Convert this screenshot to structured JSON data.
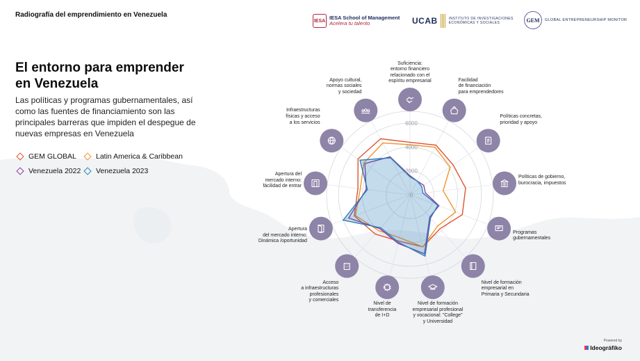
{
  "header": {
    "title": "Radiografía del emprendimiento en Venezuela",
    "logos": {
      "iesa_mark": "IESA",
      "iesa_name": "IESA School of Management",
      "iesa_tagline": "Acelera tu talento",
      "ucab_name": "UCAB",
      "ucab_institute_line1": "INSTITUTO DE INVESTIGACIONES",
      "ucab_institute_line2": "ECONÓMICAS Y SOCIALES",
      "gem_mark": "GEM",
      "gem_name": "GLOBAL ENTREPRENEURSHIP MONITOR"
    }
  },
  "intro": {
    "headline_line1": "El entorno para emprender",
    "headline_line2": "en Venezuela",
    "lead": "Las políticas y programas gubernamentales, así como las fuentes de financiamiento son las principales barreras que impiden el despegue de nuevas empresas en Venezuela"
  },
  "legend": [
    {
      "label": "GEM GLOBAL",
      "color": "#e0522c"
    },
    {
      "label": "Latin America & Caribbean",
      "color": "#f0932e"
    },
    {
      "label": "Venezuela 2022",
      "color": "#8e3d9e"
    },
    {
      "label": "Venezuela 2023",
      "color": "#2a7fb8"
    }
  ],
  "footer": {
    "powered_by": "Powered by",
    "brand": "Ideográfiko"
  },
  "chart_data": {
    "type": "radar",
    "title": "",
    "rlim": [
      0,
      7000
    ],
    "tick_labels": [
      "0",
      "2000",
      "4000",
      "6000"
    ],
    "tick_values": [
      0,
      2000,
      4000,
      6000
    ],
    "categories": [
      [
        "Suficiencia:",
        "entorno financiero",
        "relacionado con el",
        "espíritu empresarial"
      ],
      [
        "Facilidad",
        "de financiación",
        "para emprendedores"
      ],
      [
        "Políticas concretas,",
        "prioridad y apoyo"
      ],
      [
        "Políticas de gobierno,",
        "burocracia, impuestos"
      ],
      [
        "Programas",
        "gubernamentales"
      ],
      [
        "Nivel de formación",
        "empresarial en",
        "Primaria y Secundaria"
      ],
      [
        "Nivel de formación",
        "empresarial profesional",
        "y vocacional: \"College\"",
        "y Universidad"
      ],
      [
        "Nivel de",
        "transferencia",
        "de I+D"
      ],
      [
        "Acceso",
        "a infraestructuras",
        "profesionales",
        "y comerciales"
      ],
      [
        "Apertura",
        "del mercado interno:",
        "Dinámica /oportunidad"
      ],
      [
        "Apertura del",
        "mercado interno:",
        "fácilidad de entrar"
      ],
      [
        "Infraestructuras",
        "físicas y acceso",
        "a los servicios"
      ],
      [
        "Apoyo cultural,",
        "normas sociales",
        "y sociedad"
      ]
    ],
    "icons": [
      "handshake-icon",
      "money-bag-icon",
      "policy-document-icon",
      "bank-icon",
      "certificate-icon",
      "book-icon",
      "graduation-cap-icon",
      "gear-icon",
      "building-icon",
      "open-door-icon",
      "doorway-icon",
      "globe-icon",
      "community-icon"
    ],
    "series": [
      {
        "name": "GEM GLOBAL",
        "color": "#e0522c",
        "values": [
          4400,
          4700,
          4400,
          4700,
          4700,
          3800,
          4500,
          4000,
          4400,
          5000,
          4400,
          5300,
          5300
        ]
      },
      {
        "name": "Latin America & Caribbean",
        "color": "#f0932e",
        "values": [
          4200,
          4500,
          4100,
          2800,
          4100,
          3500,
          4500,
          3700,
          4000,
          4900,
          4200,
          4700,
          4900
        ]
      },
      {
        "name": "Venezuela 2022",
        "color": "#8e3d9e",
        "values": [
          1600,
          1300,
          1400,
          1300,
          2600,
          2500,
          5100,
          4200,
          3800,
          5500,
          3700,
          4600,
          3600
        ]
      },
      {
        "name": "Venezuela 2023",
        "color": "#2a7fb8",
        "values": [
          1500,
          1300,
          1200,
          1100,
          2500,
          2600,
          5300,
          4100,
          3700,
          6000,
          3600,
          5100,
          3500
        ]
      }
    ]
  }
}
